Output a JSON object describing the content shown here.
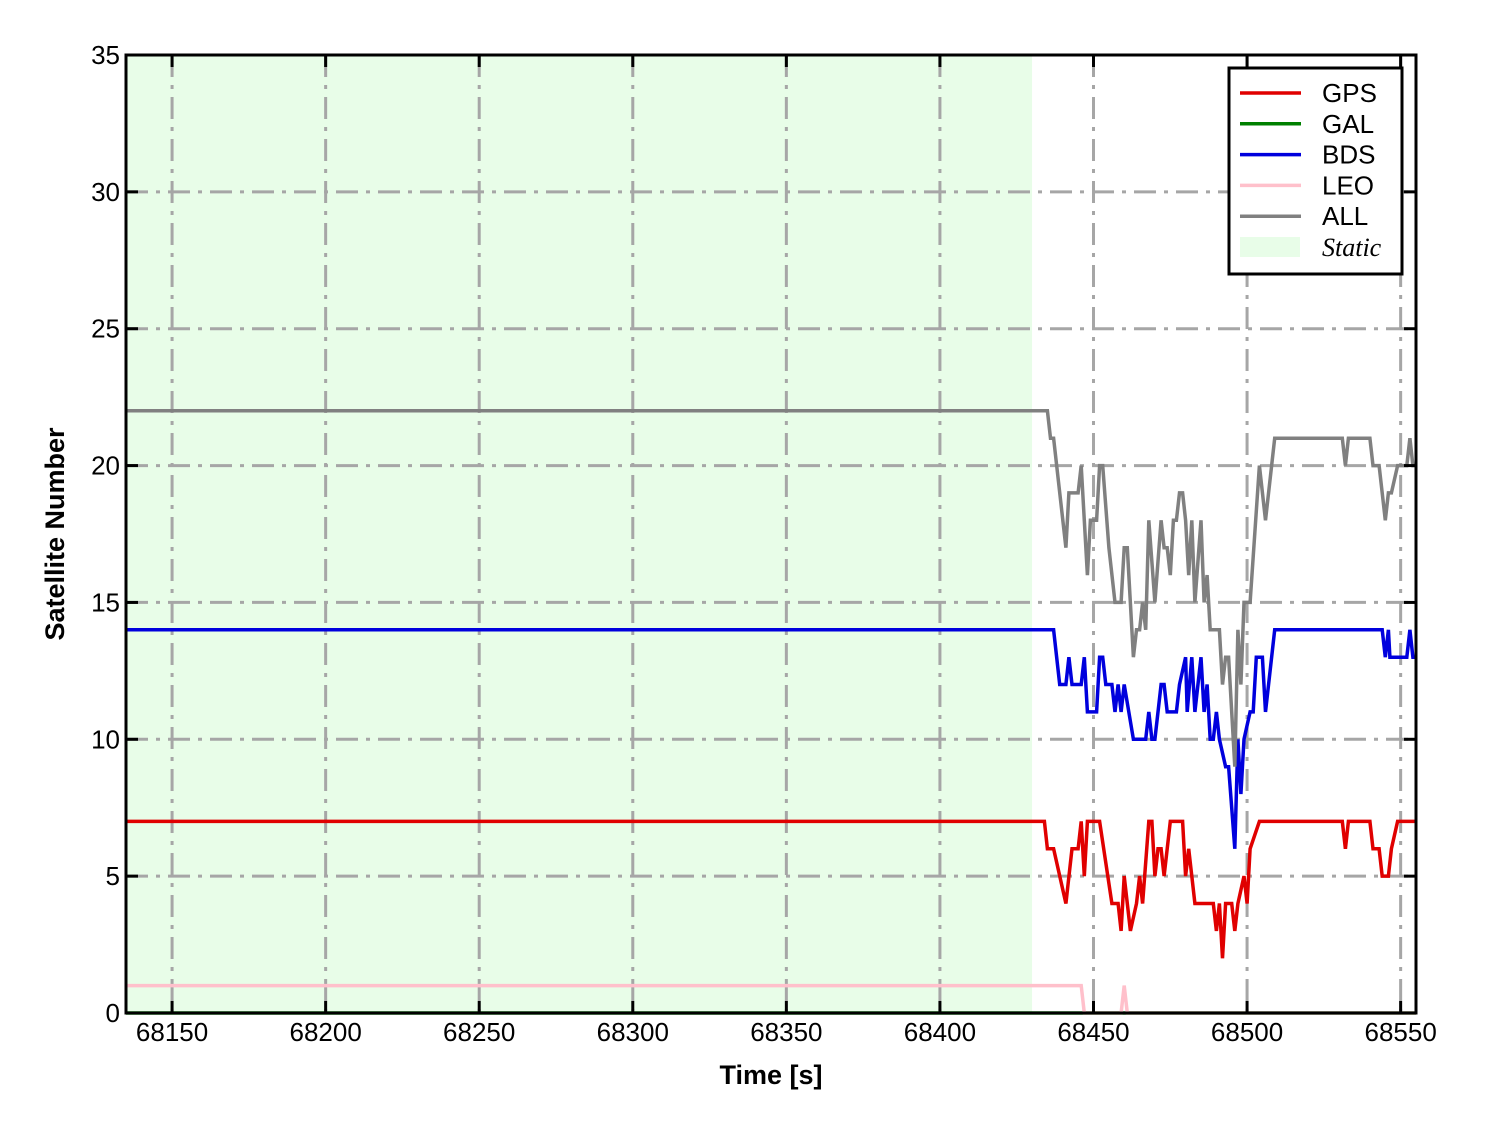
{
  "chart_data": {
    "type": "line",
    "title": "",
    "xlabel": "Time [s]",
    "ylabel": "Satellite Number",
    "xlim": [
      68135,
      68555
    ],
    "ylim": [
      0,
      35
    ],
    "xticks": [
      68150,
      68200,
      68250,
      68300,
      68350,
      68400,
      68450,
      68500,
      68550
    ],
    "yticks": [
      0,
      5,
      10,
      15,
      20,
      25,
      30,
      35
    ],
    "grid": true,
    "grid_style": "dash-dot",
    "legend_placement": "top-right",
    "shaded_regions": [
      {
        "name": "Static",
        "x": [
          68135,
          68430
        ],
        "color": "#e8fde8"
      }
    ],
    "series": [
      {
        "name": "GPS",
        "color": "#e00000",
        "points": [
          [
            68135,
            7
          ],
          [
            68434,
            7
          ],
          [
            68435,
            6
          ],
          [
            68437,
            6
          ],
          [
            68441,
            4
          ],
          [
            68443,
            6
          ],
          [
            68445,
            6
          ],
          [
            68446,
            7
          ],
          [
            68447,
            5
          ],
          [
            68448,
            7
          ],
          [
            68452,
            7
          ],
          [
            68456,
            4
          ],
          [
            68458,
            4
          ],
          [
            68459,
            3
          ],
          [
            68460,
            5
          ],
          [
            68462,
            3
          ],
          [
            68464,
            4
          ],
          [
            68465,
            5
          ],
          [
            68466,
            4
          ],
          [
            68468,
            7
          ],
          [
            68469,
            7
          ],
          [
            68470,
            5
          ],
          [
            68471,
            6
          ],
          [
            68472,
            6
          ],
          [
            68473,
            5
          ],
          [
            68474,
            6
          ],
          [
            68475,
            7
          ],
          [
            68479,
            7
          ],
          [
            68480,
            5
          ],
          [
            68481,
            6
          ],
          [
            68482,
            5
          ],
          [
            68483,
            4
          ],
          [
            68489,
            4
          ],
          [
            68490,
            3
          ],
          [
            68491,
            4
          ],
          [
            68492,
            2
          ],
          [
            68493,
            4
          ],
          [
            68495,
            4
          ],
          [
            68496,
            3
          ],
          [
            68497,
            4
          ],
          [
            68499,
            5
          ],
          [
            68500,
            4
          ],
          [
            68501,
            6
          ],
          [
            68504,
            7
          ],
          [
            68531,
            7
          ],
          [
            68532,
            6
          ],
          [
            68533,
            7
          ],
          [
            68540,
            7
          ],
          [
            68541,
            6
          ],
          [
            68543,
            6
          ],
          [
            68544,
            5
          ],
          [
            68546,
            5
          ],
          [
            68547,
            6
          ],
          [
            68549,
            7
          ],
          [
            68555,
            7
          ]
        ]
      },
      {
        "name": "GAL",
        "color": "#008000",
        "points": [
          [
            68135,
            0
          ],
          [
            68555,
            0
          ]
        ]
      },
      {
        "name": "BDS",
        "color": "#0000dd",
        "points": [
          [
            68135,
            14
          ],
          [
            68437,
            14
          ],
          [
            68439,
            12
          ],
          [
            68441,
            12
          ],
          [
            68442,
            13
          ],
          [
            68443,
            12
          ],
          [
            68446,
            12
          ],
          [
            68447,
            13
          ],
          [
            68448,
            11
          ],
          [
            68451,
            11
          ],
          [
            68452,
            13
          ],
          [
            68453,
            13
          ],
          [
            68454,
            12
          ],
          [
            68456,
            12
          ],
          [
            68457,
            11
          ],
          [
            68458,
            12
          ],
          [
            68459,
            11
          ],
          [
            68460,
            12
          ],
          [
            68463,
            10
          ],
          [
            68467,
            10
          ],
          [
            68468,
            11
          ],
          [
            68469,
            10
          ],
          [
            68470,
            10
          ],
          [
            68472,
            12
          ],
          [
            68473,
            12
          ],
          [
            68474,
            11
          ],
          [
            68477,
            11
          ],
          [
            68478,
            12
          ],
          [
            68480,
            13
          ],
          [
            68480.5,
            11
          ],
          [
            68482,
            13
          ],
          [
            68483,
            11
          ],
          [
            68485,
            13
          ],
          [
            68486,
            11
          ],
          [
            68487,
            12
          ],
          [
            68488,
            10
          ],
          [
            68489,
            10
          ],
          [
            68490,
            11
          ],
          [
            68491,
            10
          ],
          [
            68493,
            9
          ],
          [
            68494,
            9
          ],
          [
            68496,
            6
          ],
          [
            68497,
            10
          ],
          [
            68498,
            8
          ],
          [
            68499,
            10
          ],
          [
            68501,
            11
          ],
          [
            68502,
            11
          ],
          [
            68503,
            13
          ],
          [
            68505,
            13
          ],
          [
            68506,
            11
          ],
          [
            68509,
            14
          ],
          [
            68544,
            14
          ],
          [
            68545,
            13
          ],
          [
            68546,
            14
          ],
          [
            68546.5,
            13
          ],
          [
            68552,
            13
          ],
          [
            68553,
            14
          ],
          [
            68554,
            13
          ],
          [
            68555,
            13
          ]
        ]
      },
      {
        "name": "LEO",
        "color": "#ffc0cb",
        "points": [
          [
            68135,
            1
          ],
          [
            68446,
            1
          ],
          [
            68447,
            0
          ],
          [
            68459,
            0
          ],
          [
            68460,
            1
          ],
          [
            68461,
            0
          ],
          [
            68555,
            0
          ]
        ]
      },
      {
        "name": "ALL",
        "color": "#808080",
        "points": [
          [
            68135,
            22
          ],
          [
            68435,
            22
          ],
          [
            68436,
            21
          ],
          [
            68437,
            21
          ],
          [
            68441,
            17
          ],
          [
            68442,
            19
          ],
          [
            68445,
            19
          ],
          [
            68446,
            20
          ],
          [
            68448,
            16
          ],
          [
            68449,
            18
          ],
          [
            68451,
            18
          ],
          [
            68452,
            20
          ],
          [
            68453,
            20
          ],
          [
            68455,
            17
          ],
          [
            68457,
            15
          ],
          [
            68459,
            15
          ],
          [
            68460,
            17
          ],
          [
            68461,
            17
          ],
          [
            68463,
            13
          ],
          [
            68464,
            14
          ],
          [
            68465,
            14
          ],
          [
            68466,
            15
          ],
          [
            68467,
            14
          ],
          [
            68468,
            18
          ],
          [
            68470,
            15
          ],
          [
            68472,
            18
          ],
          [
            68473,
            17
          ],
          [
            68474,
            17
          ],
          [
            68475,
            16
          ],
          [
            68476,
            18
          ],
          [
            68477,
            18
          ],
          [
            68478,
            19
          ],
          [
            68479,
            19
          ],
          [
            68480,
            18
          ],
          [
            68481,
            16
          ],
          [
            68482,
            18
          ],
          [
            68483,
            15
          ],
          [
            68485,
            18
          ],
          [
            68486,
            15
          ],
          [
            68487,
            16
          ],
          [
            68488,
            14
          ],
          [
            68491,
            14
          ],
          [
            68492,
            12
          ],
          [
            68493,
            13
          ],
          [
            68494,
            13
          ],
          [
            68496,
            9
          ],
          [
            68497,
            14
          ],
          [
            68498,
            12
          ],
          [
            68499,
            15
          ],
          [
            68501,
            15
          ],
          [
            68504,
            20
          ],
          [
            68506,
            18
          ],
          [
            68509,
            21
          ],
          [
            68531,
            21
          ],
          [
            68532,
            20
          ],
          [
            68533,
            21
          ],
          [
            68540,
            21
          ],
          [
            68541,
            20
          ],
          [
            68543,
            20
          ],
          [
            68545,
            18
          ],
          [
            68546,
            19
          ],
          [
            68547,
            19
          ],
          [
            68549,
            20
          ],
          [
            68552,
            20
          ],
          [
            68553,
            21
          ],
          [
            68554,
            20
          ],
          [
            68555,
            20
          ]
        ]
      }
    ],
    "legend": [
      {
        "label": "GPS",
        "color": "#e00000",
        "kind": "line"
      },
      {
        "label": "GAL",
        "color": "#008000",
        "kind": "line"
      },
      {
        "label": "BDS",
        "color": "#0000dd",
        "kind": "line"
      },
      {
        "label": "LEO",
        "color": "#ffc0cb",
        "kind": "line"
      },
      {
        "label": "ALL",
        "color": "#808080",
        "kind": "line"
      },
      {
        "label": "Static",
        "color": "#e8fde8",
        "kind": "patch"
      }
    ]
  }
}
